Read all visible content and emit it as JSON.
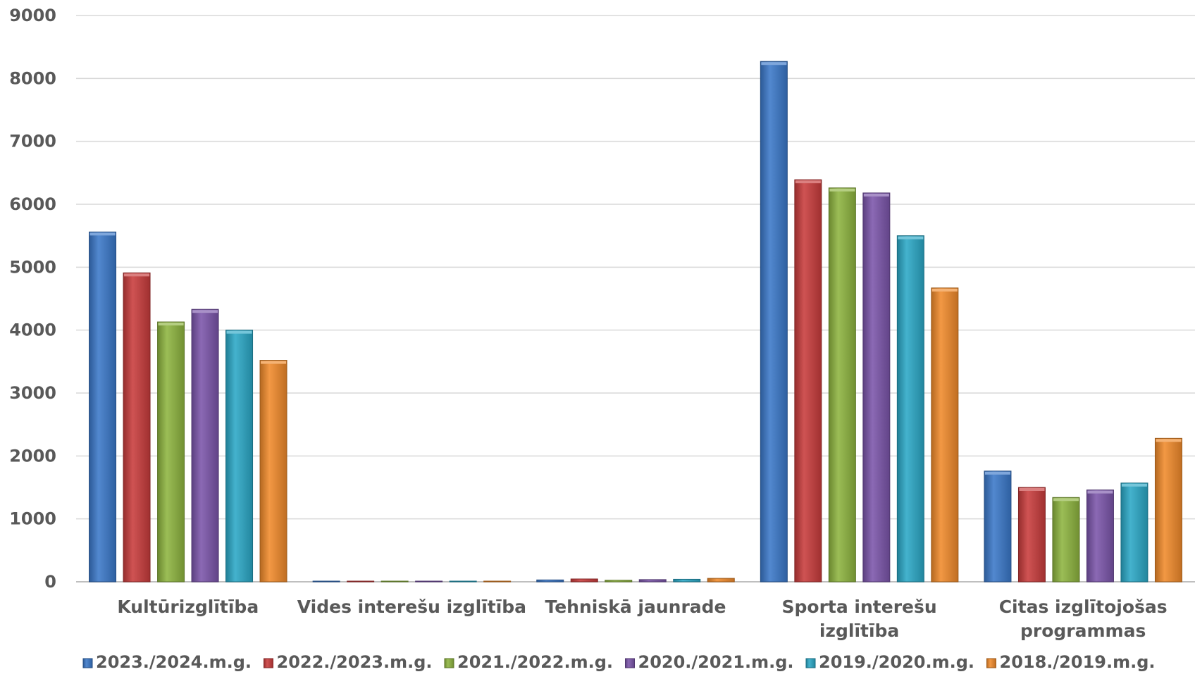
{
  "chart_data": {
    "type": "bar",
    "title": "",
    "xlabel": "",
    "ylabel": "",
    "ylim": [
      0,
      9000
    ],
    "yticks": [
      0,
      1000,
      2000,
      3000,
      4000,
      5000,
      6000,
      7000,
      8000,
      9000
    ],
    "grid": true,
    "legend_position": "bottom",
    "categories": [
      [
        "Kultūrizglītība"
      ],
      [
        "Vides interešu izglītība"
      ],
      [
        "Tehniskā jaunrade"
      ],
      [
        "Sporta interešu",
        "izglītība"
      ],
      [
        "Citas izglītojošas",
        "programmas"
      ]
    ],
    "series": [
      {
        "name": "2023./2024.m.g.",
        "color": "#3a78c9",
        "values": [
          5560,
          5,
          30,
          8270,
          1760
        ]
      },
      {
        "name": "2022./2023.m.g.",
        "color": "#c83c3c",
        "values": [
          4910,
          5,
          45,
          6390,
          1500
        ]
      },
      {
        "name": "2021./2022.m.g.",
        "color": "#8db43f",
        "values": [
          4130,
          5,
          25,
          6260,
          1340
        ]
      },
      {
        "name": "2020./2021.m.g.",
        "color": "#7b55aa",
        "values": [
          4330,
          5,
          35,
          6180,
          1460
        ]
      },
      {
        "name": "2019./2020.m.g.",
        "color": "#2aa8c6",
        "values": [
          4000,
          5,
          40,
          5500,
          1570
        ]
      },
      {
        "name": "2018./2019.m.g.",
        "color": "#f08a2a",
        "values": [
          3520,
          5,
          55,
          4670,
          2280
        ]
      }
    ]
  }
}
